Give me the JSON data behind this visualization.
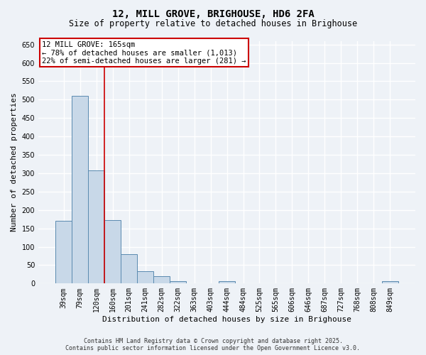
{
  "title": "12, MILL GROVE, BRIGHOUSE, HD6 2FA",
  "subtitle": "Size of property relative to detached houses in Brighouse",
  "xlabel": "Distribution of detached houses by size in Brighouse",
  "ylabel": "Number of detached properties",
  "categories": [
    "39sqm",
    "79sqm",
    "120sqm",
    "160sqm",
    "201sqm",
    "241sqm",
    "282sqm",
    "322sqm",
    "363sqm",
    "403sqm",
    "444sqm",
    "484sqm",
    "525sqm",
    "565sqm",
    "606sqm",
    "646sqm",
    "687sqm",
    "727sqm",
    "768sqm",
    "808sqm",
    "849sqm"
  ],
  "values": [
    170,
    510,
    308,
    172,
    80,
    33,
    20,
    7,
    0,
    0,
    7,
    0,
    0,
    0,
    0,
    0,
    0,
    0,
    0,
    0,
    7
  ],
  "bar_color": "#c8d8e8",
  "bar_edge_color": "#5a8ab0",
  "background_color": "#eef2f7",
  "grid_color": "#ffffff",
  "annotation_line1": "12 MILL GROVE: 165sqm",
  "annotation_line2": "← 78% of detached houses are smaller (1,013)",
  "annotation_line3": "22% of semi-detached houses are larger (281) →",
  "annotation_box_color": "#ffffff",
  "annotation_box_edge_color": "#cc0000",
  "property_line_x": 2.5,
  "property_line_color": "#cc0000",
  "ylim": [
    0,
    660
  ],
  "yticks": [
    0,
    50,
    100,
    150,
    200,
    250,
    300,
    350,
    400,
    450,
    500,
    550,
    600,
    650
  ],
  "footer_line1": "Contains HM Land Registry data © Crown copyright and database right 2025.",
  "footer_line2": "Contains public sector information licensed under the Open Government Licence v3.0.",
  "title_fontsize": 10,
  "subtitle_fontsize": 8.5,
  "ylabel_fontsize": 8,
  "xlabel_fontsize": 8,
  "tick_fontsize": 7,
  "annotation_fontsize": 7.5,
  "footer_fontsize": 6
}
